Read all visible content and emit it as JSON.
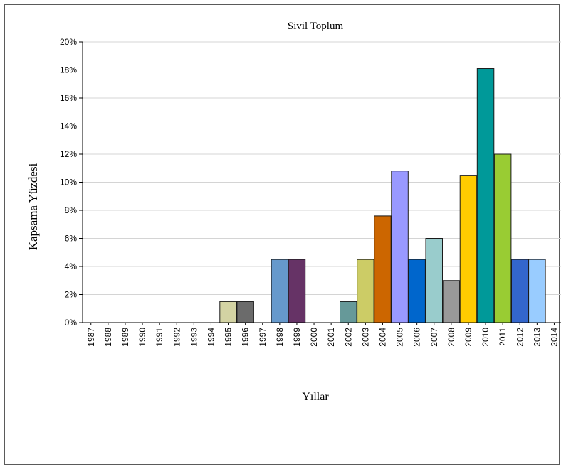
{
  "chart_data": {
    "type": "bar",
    "title": "Sivil Toplum",
    "xlabel": "Yıllar",
    "ylabel": "Kapsama Yüzdesi",
    "ylim": [
      0,
      20
    ],
    "yticks": [
      "0%",
      "2%",
      "4%",
      "6%",
      "8%",
      "10%",
      "12%",
      "14%",
      "16%",
      "18%",
      "20%"
    ],
    "grid": true,
    "categories": [
      "1987",
      "1988",
      "1989",
      "1990",
      "1991",
      "1992",
      "1993",
      "1994",
      "1995",
      "1996",
      "1997",
      "1998",
      "1999",
      "2000",
      "2001",
      "2002",
      "2003",
      "2004",
      "2005",
      "2006",
      "2007",
      "2008",
      "2009",
      "2010",
      "2011",
      "2012",
      "2013",
      "2014"
    ],
    "values": [
      0,
      0,
      0,
      0,
      0,
      0,
      0,
      0,
      1.5,
      1.5,
      0,
      4.5,
      4.5,
      0,
      0,
      1.5,
      4.5,
      7.6,
      10.8,
      4.5,
      6.0,
      3.0,
      10.5,
      18.1,
      12.0,
      4.5,
      4.5,
      0
    ],
    "colors": [
      "#cccccc",
      "#cccccc",
      "#cccccc",
      "#cccccc",
      "#cccccc",
      "#cccccc",
      "#cccccc",
      "#cccccc",
      "#d3d3a3",
      "#6b6b6b",
      "#cccccc",
      "#6699cc",
      "#663366",
      "#cccccc",
      "#cccccc",
      "#669999",
      "#cccc66",
      "#cc6600",
      "#9999ff",
      "#0066cc",
      "#99cccc",
      "#999999",
      "#ffcc00",
      "#009999",
      "#99cc33",
      "#3366cc",
      "#99ccff",
      "#cccccc"
    ]
  }
}
